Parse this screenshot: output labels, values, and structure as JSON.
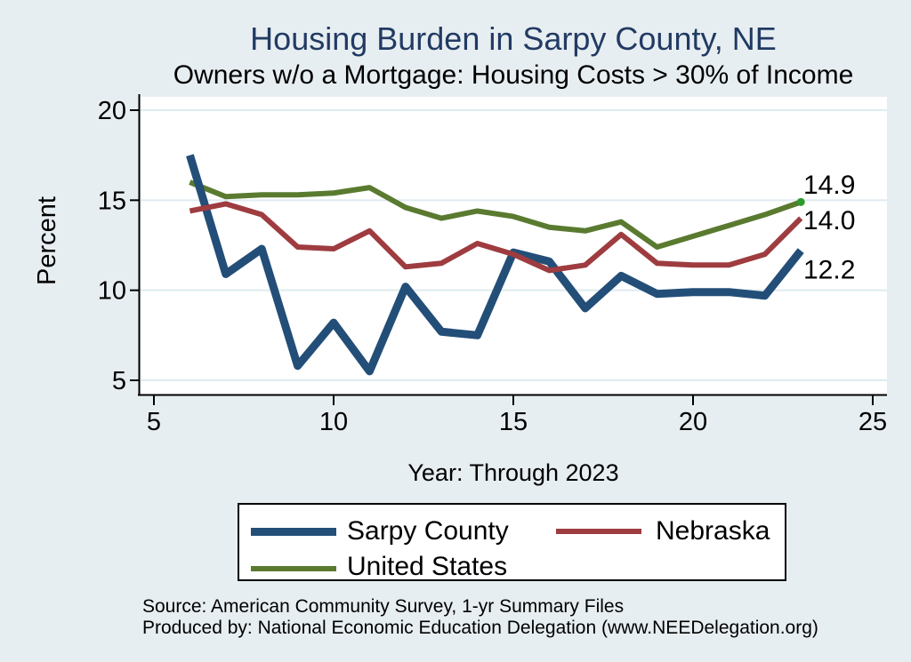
{
  "header": {
    "title": "Housing Burden in Sarpy County, NE",
    "subtitle": "Owners w/o a Mortgage: Housing Costs > 30% of Income"
  },
  "chart_data": {
    "type": "line",
    "x": [
      6,
      7,
      8,
      9,
      10,
      11,
      12,
      13,
      14,
      15,
      16,
      17,
      18,
      19,
      20,
      21,
      22,
      23
    ],
    "series": [
      {
        "name": "Sarpy County",
        "color": "#234e78",
        "line_width": 9,
        "values": [
          17.5,
          10.9,
          12.3,
          5.8,
          8.2,
          5.5,
          10.2,
          7.7,
          7.5,
          12.1,
          11.6,
          9.0,
          10.8,
          9.8,
          9.9,
          9.9,
          9.7,
          12.2
        ],
        "end_label": "12.2"
      },
      {
        "name": "Nebraska",
        "color": "#9e3c40",
        "line_width": 6,
        "values": [
          14.4,
          14.8,
          14.2,
          12.4,
          12.3,
          13.3,
          11.3,
          11.5,
          12.6,
          12.0,
          11.1,
          11.4,
          13.1,
          11.5,
          11.4,
          11.4,
          12.0,
          14.0
        ],
        "end_label": "14.0"
      },
      {
        "name": "United States",
        "color": "#5a7a30",
        "line_width": 6,
        "values": [
          16.0,
          15.2,
          15.3,
          15.3,
          15.4,
          15.7,
          14.6,
          14.0,
          14.4,
          14.1,
          13.5,
          13.3,
          13.8,
          12.4,
          13.0,
          13.6,
          14.2,
          14.9
        ],
        "end_label": "14.9",
        "end_marker_color": "#2b9b2b"
      }
    ],
    "title": "Housing Burden in Sarpy County, NE",
    "subtitle": "Owners w/o a Mortgage: Housing Costs > 30% of Income",
    "xlabel": "Year: Through 2023",
    "ylabel": "Percent",
    "xticks": [
      5,
      10,
      15,
      20,
      25
    ],
    "yticks": [
      20,
      15,
      10,
      5
    ],
    "xlim": [
      4.6,
      25.4
    ],
    "ylim": [
      4.3,
      20.7
    ],
    "grid": true,
    "legend_position": "bottom"
  },
  "footer": {
    "source": "Source: American Community Survey, 1-yr Summary Files",
    "produced_by": "Produced by: National Economic Education Delegation (www.NEEDelegation.org)"
  },
  "colors": {
    "background": "#e7eef1",
    "plot_background": "#ffffff",
    "gridline": "#dfebf0",
    "title_text": "#223a63",
    "axis_text": "#000000",
    "sarpy_county_line": "#234e78",
    "nebraska_line": "#9e3c40",
    "united_states_line": "#5a7a30",
    "end_marker": "#2b9b2b"
  }
}
